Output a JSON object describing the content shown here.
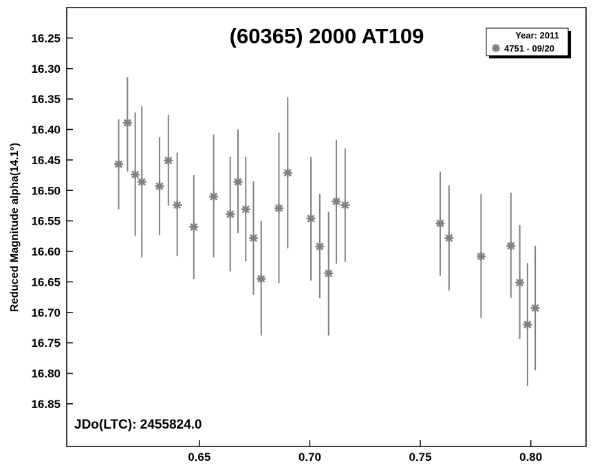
{
  "chart_data": {
    "type": "scatter",
    "title": "(60365) 2000 AT109",
    "xlabel": "",
    "ylabel": "Reduced Magnitude alpha(14.1°)",
    "xlim": [
      0.59,
      0.825
    ],
    "ylim": [
      16.2,
      16.92
    ],
    "y_inverted": true,
    "x_ticks": [
      0.65,
      0.7,
      0.75,
      0.8
    ],
    "x_tick_labels": [
      "0.65",
      "0.70",
      "0.75",
      "0.80"
    ],
    "y_ticks": [
      16.25,
      16.3,
      16.35,
      16.4,
      16.45,
      16.5,
      16.55,
      16.6,
      16.65,
      16.7,
      16.75,
      16.8,
      16.85
    ],
    "y_tick_labels": [
      "16.25",
      "16.30",
      "16.35",
      "16.40",
      "16.45",
      "16.50",
      "16.55",
      "16.60",
      "16.65",
      "16.70",
      "16.75",
      "16.80",
      "16.85"
    ],
    "grid": false,
    "legend": {
      "placement": "top-right",
      "title": "Year: 2011",
      "entries": [
        "4751 - 09/20"
      ]
    },
    "annotation": "JDo(LTC): 2455824.0",
    "marker_color": "#808080",
    "series": [
      {
        "name": "4751 - 09/20",
        "points": [
          {
            "x": 0.6135,
            "y": 16.457,
            "ylow": 16.383,
            "yhigh": 16.531
          },
          {
            "x": 0.6175,
            "y": 16.389,
            "ylow": 16.314,
            "yhigh": 16.469
          },
          {
            "x": 0.621,
            "y": 16.474,
            "ylow": 16.372,
            "yhigh": 16.575
          },
          {
            "x": 0.624,
            "y": 16.486,
            "ylow": 16.362,
            "yhigh": 16.61
          },
          {
            "x": 0.632,
            "y": 16.493,
            "ylow": 16.413,
            "yhigh": 16.573
          },
          {
            "x": 0.636,
            "y": 16.451,
            "ylow": 16.376,
            "yhigh": 16.525
          },
          {
            "x": 0.64,
            "y": 16.524,
            "ylow": 16.438,
            "yhigh": 16.608
          },
          {
            "x": 0.6475,
            "y": 16.56,
            "ylow": 16.475,
            "yhigh": 16.645
          },
          {
            "x": 0.6565,
            "y": 16.51,
            "ylow": 16.408,
            "yhigh": 16.61
          },
          {
            "x": 0.664,
            "y": 16.539,
            "ylow": 16.445,
            "yhigh": 16.633
          },
          {
            "x": 0.6675,
            "y": 16.486,
            "ylow": 16.4,
            "yhigh": 16.57
          },
          {
            "x": 0.671,
            "y": 16.531,
            "ylow": 16.445,
            "yhigh": 16.616
          },
          {
            "x": 0.6745,
            "y": 16.578,
            "ylow": 16.485,
            "yhigh": 16.671
          },
          {
            "x": 0.678,
            "y": 16.645,
            "ylow": 16.55,
            "yhigh": 16.738
          },
          {
            "x": 0.686,
            "y": 16.529,
            "ylow": 16.405,
            "yhigh": 16.652
          },
          {
            "x": 0.69,
            "y": 16.471,
            "ylow": 16.347,
            "yhigh": 16.595
          },
          {
            "x": 0.7005,
            "y": 16.546,
            "ylow": 16.445,
            "yhigh": 16.648
          },
          {
            "x": 0.7045,
            "y": 16.592,
            "ylow": 16.506,
            "yhigh": 16.677
          },
          {
            "x": 0.7085,
            "y": 16.636,
            "ylow": 16.535,
            "yhigh": 16.738
          },
          {
            "x": 0.712,
            "y": 16.518,
            "ylow": 16.417,
            "yhigh": 16.62
          },
          {
            "x": 0.716,
            "y": 16.524,
            "ylow": 16.431,
            "yhigh": 16.617
          },
          {
            "x": 0.759,
            "y": 16.554,
            "ylow": 16.469,
            "yhigh": 16.64
          },
          {
            "x": 0.763,
            "y": 16.578,
            "ylow": 16.492,
            "yhigh": 16.664
          },
          {
            "x": 0.7775,
            "y": 16.608,
            "ylow": 16.506,
            "yhigh": 16.709
          },
          {
            "x": 0.791,
            "y": 16.591,
            "ylow": 16.504,
            "yhigh": 16.676
          },
          {
            "x": 0.795,
            "y": 16.651,
            "ylow": 16.557,
            "yhigh": 16.744
          },
          {
            "x": 0.7985,
            "y": 16.72,
            "ylow": 16.619,
            "yhigh": 16.821
          },
          {
            "x": 0.802,
            "y": 16.693,
            "ylow": 16.591,
            "yhigh": 16.795
          }
        ]
      }
    ]
  }
}
